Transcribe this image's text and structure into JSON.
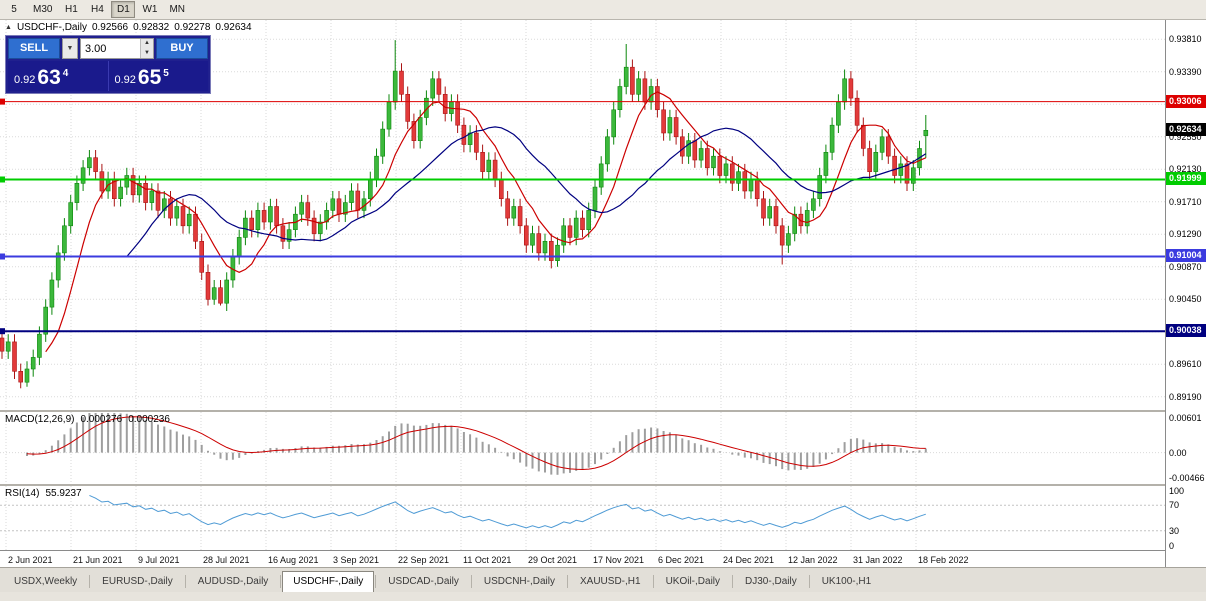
{
  "toolbar": {
    "timeframes": [
      {
        "label": "5",
        "active": false
      },
      {
        "label": "M30",
        "active": false
      },
      {
        "label": "H1",
        "active": false
      },
      {
        "label": "H4",
        "active": false
      },
      {
        "label": "D1",
        "active": true
      },
      {
        "label": "W1",
        "active": false
      },
      {
        "label": "MN",
        "active": false
      }
    ]
  },
  "header": {
    "collapse_icon": "▲",
    "symbol": "USDCHF-,Daily",
    "open": "0.92566",
    "high": "0.92832",
    "low": "0.92278",
    "close": "0.92634"
  },
  "trade_panel": {
    "sell_label": "SELL",
    "buy_label": "BUY",
    "volume": "3.00",
    "dropdown_icon": "▼",
    "sell_price_small": "0.92",
    "sell_price_big": "63",
    "sell_price_sup": "4",
    "buy_price_small": "0.92",
    "buy_price_big": "65",
    "buy_price_sup": "5"
  },
  "price_axis": {
    "labels": [
      "0.93810",
      "0.93390",
      "0.92970",
      "0.92550",
      "0.92130",
      "0.91710",
      "0.91290",
      "0.90870",
      "0.90450",
      "0.90030",
      "0.89610",
      "0.89190"
    ]
  },
  "levels": [
    {
      "label": "0.93006",
      "price": 0.93006,
      "color": "#dd0000",
      "width": 1
    },
    {
      "label": "0.91999",
      "price": 0.91999,
      "color": "#00cc00",
      "width": 2
    },
    {
      "label": "0.91004",
      "price": 0.91004,
      "color": "#3b3bdf",
      "width": 2
    },
    {
      "label": "0.90038",
      "price": 0.90038,
      "color": "#000080",
      "width": 2
    }
  ],
  "current_price": {
    "value": 0.92634,
    "label": "0.92634",
    "bg": "#000000"
  },
  "macd": {
    "label": "MACD(12,26,9)",
    "value1": "0.000276",
    "value2": "0.000236",
    "axis": [
      "0.00601",
      "0.00",
      "-0.00466"
    ],
    "max": 0.00601,
    "min": -0.00466,
    "params": [
      12,
      26,
      9
    ]
  },
  "rsi": {
    "label": "RSI(14)",
    "value": "55.9237",
    "axis": [
      "100",
      "70",
      "30",
      "0"
    ],
    "levels": [
      70,
      30
    ],
    "period": 14
  },
  "date_axis": {
    "labels": [
      "2 Jun 2021",
      "21 Jun 2021",
      "9 Jul 2021",
      "28 Jul 2021",
      "16 Aug 2021",
      "3 Sep 2021",
      "22 Sep 2021",
      "11 Oct 2021",
      "29 Oct 2021",
      "17 Nov 2021",
      "6 Dec 2021",
      "24 Dec 2021",
      "12 Jan 2022",
      "31 Jan 2022",
      "18 Feb 2022"
    ]
  },
  "tabs": {
    "items": [
      "USDX,Weekly",
      "EURUSD-,Daily",
      "AUDUSD-,Daily",
      "USDCHF-,Daily",
      "USDCAD-,Daily",
      "USDCNH-,Daily",
      "XAUUSD-,H1",
      "UKOil-,Daily",
      "DJ30-,Daily",
      "UK100-,H1"
    ],
    "active_index": 3
  },
  "chart_data": {
    "type": "candlestick",
    "symbol": "USDCHF-",
    "timeframe": "Daily",
    "title": "USDCHF-,Daily",
    "ohlc_current": {
      "open": 0.92566,
      "high": 0.92832,
      "low": 0.92278,
      "close": 0.92634
    },
    "ylim": [
      0.8902,
      0.9406
    ],
    "colors": {
      "bull": "#3cb83c",
      "bull_border": "#0c870c",
      "bear": "#e23a3a",
      "bear_border": "#aa1414",
      "ma_fast": "#cc0000",
      "ma_slow": "#000080"
    },
    "candles": [
      [
        0.8995,
        0.9005,
        0.8968,
        0.8978
      ],
      [
        0.8978,
        0.9,
        0.8968,
        0.899
      ],
      [
        0.899,
        0.9,
        0.8942,
        0.8952
      ],
      [
        0.8952,
        0.8962,
        0.893,
        0.8938
      ],
      [
        0.8938,
        0.8965,
        0.8932,
        0.8955
      ],
      [
        0.8955,
        0.898,
        0.8945,
        0.897
      ],
      [
        0.897,
        0.901,
        0.896,
        0.9
      ],
      [
        0.9,
        0.9045,
        0.899,
        0.9035
      ],
      [
        0.9035,
        0.908,
        0.9025,
        0.907
      ],
      [
        0.907,
        0.9115,
        0.906,
        0.9105
      ],
      [
        0.9105,
        0.915,
        0.9095,
        0.914
      ],
      [
        0.914,
        0.918,
        0.913,
        0.917
      ],
      [
        0.917,
        0.9205,
        0.916,
        0.9195
      ],
      [
        0.9195,
        0.9225,
        0.9185,
        0.9215
      ],
      [
        0.9215,
        0.9238,
        0.9205,
        0.9228
      ],
      [
        0.9228,
        0.9238,
        0.92,
        0.921
      ],
      [
        0.921,
        0.922,
        0.9175,
        0.9185
      ],
      [
        0.9185,
        0.921,
        0.9175,
        0.92
      ],
      [
        0.92,
        0.921,
        0.9165,
        0.9175
      ],
      [
        0.9175,
        0.92,
        0.9165,
        0.919
      ],
      [
        0.919,
        0.9215,
        0.918,
        0.9205
      ],
      [
        0.9205,
        0.9215,
        0.917,
        0.918
      ],
      [
        0.918,
        0.9205,
        0.917,
        0.9195
      ],
      [
        0.9195,
        0.9205,
        0.916,
        0.917
      ],
      [
        0.917,
        0.9195,
        0.916,
        0.9185
      ],
      [
        0.9185,
        0.9195,
        0.915,
        0.916
      ],
      [
        0.916,
        0.9185,
        0.915,
        0.9175
      ],
      [
        0.9175,
        0.9185,
        0.914,
        0.915
      ],
      [
        0.915,
        0.9175,
        0.914,
        0.9165
      ],
      [
        0.9165,
        0.9175,
        0.913,
        0.914
      ],
      [
        0.914,
        0.9165,
        0.913,
        0.9155
      ],
      [
        0.9155,
        0.9165,
        0.911,
        0.912
      ],
      [
        0.912,
        0.913,
        0.907,
        0.908
      ],
      [
        0.908,
        0.909,
        0.9037,
        0.9045
      ],
      [
        0.9045,
        0.907,
        0.9038,
        0.906
      ],
      [
        0.906,
        0.907,
        0.9037,
        0.904
      ],
      [
        0.904,
        0.908,
        0.903,
        0.907
      ],
      [
        0.907,
        0.911,
        0.906,
        0.91
      ],
      [
        0.91,
        0.9135,
        0.909,
        0.9125
      ],
      [
        0.9125,
        0.916,
        0.9115,
        0.915
      ],
      [
        0.915,
        0.916,
        0.9125,
        0.9135
      ],
      [
        0.9135,
        0.917,
        0.9125,
        0.916
      ],
      [
        0.916,
        0.917,
        0.9135,
        0.9145
      ],
      [
        0.9145,
        0.9175,
        0.9135,
        0.9165
      ],
      [
        0.9165,
        0.9175,
        0.913,
        0.914
      ],
      [
        0.914,
        0.915,
        0.911,
        0.912
      ],
      [
        0.912,
        0.9145,
        0.911,
        0.9135
      ],
      [
        0.9135,
        0.9165,
        0.9125,
        0.9155
      ],
      [
        0.9155,
        0.918,
        0.9145,
        0.917
      ],
      [
        0.917,
        0.918,
        0.914,
        0.915
      ],
      [
        0.915,
        0.916,
        0.912,
        0.913
      ],
      [
        0.913,
        0.9155,
        0.912,
        0.9145
      ],
      [
        0.9145,
        0.917,
        0.9135,
        0.916
      ],
      [
        0.916,
        0.9185,
        0.915,
        0.9175
      ],
      [
        0.9175,
        0.9185,
        0.9145,
        0.9155
      ],
      [
        0.9155,
        0.918,
        0.9145,
        0.917
      ],
      [
        0.917,
        0.9195,
        0.916,
        0.9185
      ],
      [
        0.9185,
        0.9195,
        0.915,
        0.916
      ],
      [
        0.916,
        0.9185,
        0.915,
        0.9175
      ],
      [
        0.9175,
        0.921,
        0.9165,
        0.92
      ],
      [
        0.92,
        0.924,
        0.919,
        0.923
      ],
      [
        0.923,
        0.9275,
        0.922,
        0.9265
      ],
      [
        0.9265,
        0.931,
        0.9255,
        0.93
      ],
      [
        0.93,
        0.938,
        0.929,
        0.934
      ],
      [
        0.934,
        0.935,
        0.93,
        0.931
      ],
      [
        0.931,
        0.932,
        0.9265,
        0.9275
      ],
      [
        0.9275,
        0.9285,
        0.924,
        0.925
      ],
      [
        0.925,
        0.929,
        0.924,
        0.928
      ],
      [
        0.928,
        0.9315,
        0.927,
        0.9305
      ],
      [
        0.9305,
        0.934,
        0.9295,
        0.933
      ],
      [
        0.933,
        0.934,
        0.93,
        0.931
      ],
      [
        0.931,
        0.932,
        0.9275,
        0.9285
      ],
      [
        0.9285,
        0.931,
        0.9275,
        0.93
      ],
      [
        0.93,
        0.931,
        0.926,
        0.927
      ],
      [
        0.927,
        0.928,
        0.9235,
        0.9245
      ],
      [
        0.9245,
        0.927,
        0.9235,
        0.926
      ],
      [
        0.926,
        0.927,
        0.9225,
        0.9235
      ],
      [
        0.9235,
        0.9245,
        0.92,
        0.921
      ],
      [
        0.921,
        0.9235,
        0.92,
        0.9225
      ],
      [
        0.9225,
        0.9235,
        0.919,
        0.92
      ],
      [
        0.92,
        0.921,
        0.9165,
        0.9175
      ],
      [
        0.9175,
        0.9185,
        0.914,
        0.915
      ],
      [
        0.915,
        0.9175,
        0.914,
        0.9165
      ],
      [
        0.9165,
        0.9175,
        0.913,
        0.914
      ],
      [
        0.914,
        0.915,
        0.9105,
        0.9115
      ],
      [
        0.9115,
        0.914,
        0.9105,
        0.913
      ],
      [
        0.913,
        0.914,
        0.9095,
        0.9105
      ],
      [
        0.9105,
        0.913,
        0.9095,
        0.912
      ],
      [
        0.912,
        0.913,
        0.9085,
        0.9095
      ],
      [
        0.9095,
        0.9125,
        0.9087,
        0.9115
      ],
      [
        0.9115,
        0.915,
        0.9105,
        0.914
      ],
      [
        0.914,
        0.915,
        0.9115,
        0.9125
      ],
      [
        0.9125,
        0.916,
        0.9115,
        0.915
      ],
      [
        0.915,
        0.916,
        0.9125,
        0.9135
      ],
      [
        0.9135,
        0.917,
        0.9125,
        0.916
      ],
      [
        0.916,
        0.92,
        0.915,
        0.919
      ],
      [
        0.919,
        0.923,
        0.918,
        0.922
      ],
      [
        0.922,
        0.9265,
        0.921,
        0.9255
      ],
      [
        0.9255,
        0.93,
        0.9245,
        0.929
      ],
      [
        0.929,
        0.933,
        0.928,
        0.932
      ],
      [
        0.932,
        0.9375,
        0.931,
        0.9345
      ],
      [
        0.9345,
        0.9355,
        0.93,
        0.931
      ],
      [
        0.931,
        0.934,
        0.93,
        0.933
      ],
      [
        0.933,
        0.934,
        0.929,
        0.93
      ],
      [
        0.93,
        0.933,
        0.929,
        0.932
      ],
      [
        0.932,
        0.933,
        0.928,
        0.929
      ],
      [
        0.929,
        0.93,
        0.925,
        0.926
      ],
      [
        0.926,
        0.929,
        0.925,
        0.928
      ],
      [
        0.928,
        0.929,
        0.9245,
        0.9255
      ],
      [
        0.9255,
        0.9265,
        0.922,
        0.923
      ],
      [
        0.923,
        0.926,
        0.922,
        0.925
      ],
      [
        0.925,
        0.926,
        0.9215,
        0.9225
      ],
      [
        0.9225,
        0.925,
        0.9215,
        0.924
      ],
      [
        0.924,
        0.925,
        0.9205,
        0.9215
      ],
      [
        0.9215,
        0.924,
        0.9205,
        0.923
      ],
      [
        0.923,
        0.924,
        0.9195,
        0.9205
      ],
      [
        0.9205,
        0.923,
        0.9195,
        0.922
      ],
      [
        0.922,
        0.923,
        0.9185,
        0.9195
      ],
      [
        0.9195,
        0.922,
        0.9185,
        0.921
      ],
      [
        0.921,
        0.922,
        0.9175,
        0.9185
      ],
      [
        0.9185,
        0.921,
        0.9175,
        0.92
      ],
      [
        0.92,
        0.921,
        0.9165,
        0.9175
      ],
      [
        0.9175,
        0.9185,
        0.914,
        0.915
      ],
      [
        0.915,
        0.9175,
        0.914,
        0.9165
      ],
      [
        0.9165,
        0.9175,
        0.913,
        0.914
      ],
      [
        0.914,
        0.915,
        0.909,
        0.9115
      ],
      [
        0.9115,
        0.914,
        0.9105,
        0.913
      ],
      [
        0.913,
        0.9165,
        0.912,
        0.9155
      ],
      [
        0.9155,
        0.9165,
        0.913,
        0.914
      ],
      [
        0.914,
        0.917,
        0.913,
        0.916
      ],
      [
        0.916,
        0.9185,
        0.915,
        0.9175
      ],
      [
        0.9175,
        0.9215,
        0.9165,
        0.9205
      ],
      [
        0.9205,
        0.9245,
        0.9195,
        0.9235
      ],
      [
        0.9235,
        0.928,
        0.9225,
        0.927
      ],
      [
        0.927,
        0.931,
        0.926,
        0.93
      ],
      [
        0.93,
        0.9342,
        0.929,
        0.933
      ],
      [
        0.933,
        0.934,
        0.9295,
        0.9305
      ],
      [
        0.9305,
        0.9315,
        0.926,
        0.927
      ],
      [
        0.927,
        0.928,
        0.923,
        0.924
      ],
      [
        0.924,
        0.925,
        0.92,
        0.921
      ],
      [
        0.921,
        0.9245,
        0.92,
        0.9235
      ],
      [
        0.9235,
        0.9265,
        0.9225,
        0.9255
      ],
      [
        0.9255,
        0.9265,
        0.922,
        0.923
      ],
      [
        0.923,
        0.924,
        0.9195,
        0.9205
      ],
      [
        0.9205,
        0.923,
        0.9195,
        0.922
      ],
      [
        0.922,
        0.923,
        0.9185,
        0.9195
      ],
      [
        0.9195,
        0.9225,
        0.9185,
        0.9215
      ],
      [
        0.9215,
        0.925,
        0.9205,
        0.924
      ],
      [
        0.92566,
        0.92832,
        0.92278,
        0.92634
      ]
    ]
  }
}
